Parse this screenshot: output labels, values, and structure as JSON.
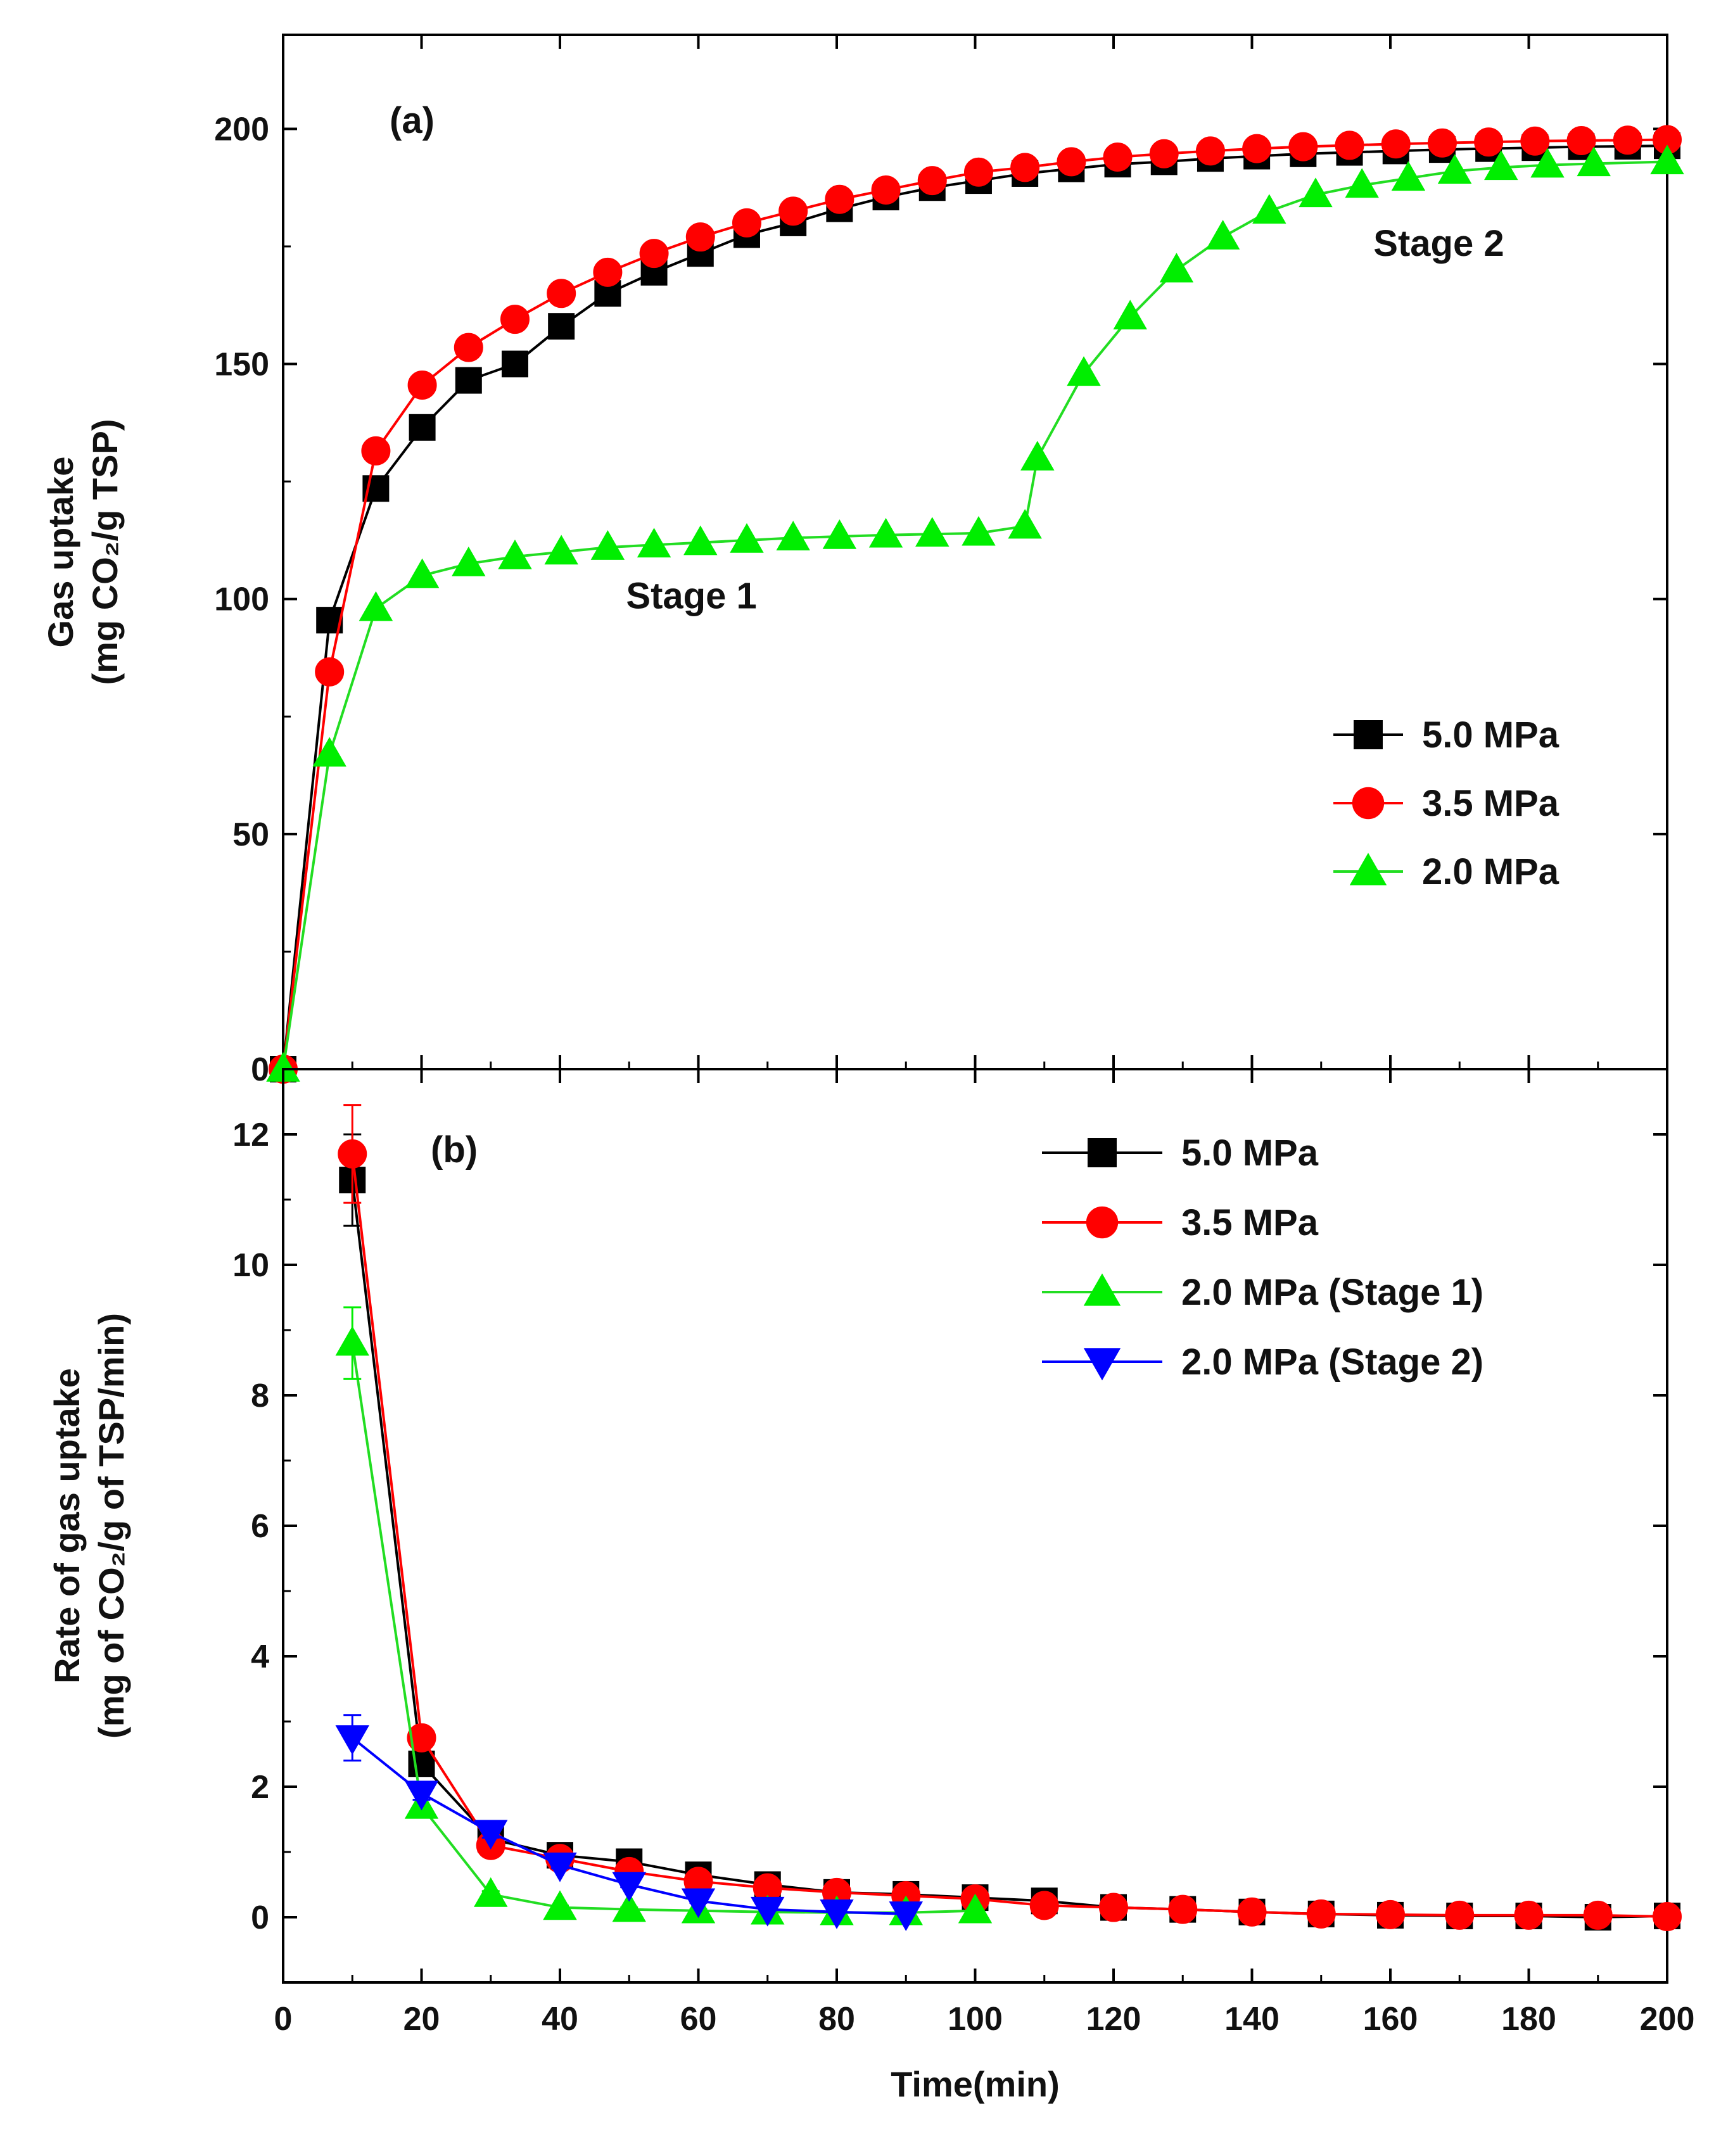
{
  "chart_data": [
    {
      "type": "line",
      "panel_label": "(a)",
      "xlabel": "",
      "ylabel_line1": "Gas uptake",
      "ylabel_line2": "(mg CO₂/g TSP)",
      "xlim": [
        0,
        200
      ],
      "ylim": [
        0,
        220
      ],
      "yticks": [
        0,
        50,
        100,
        150,
        200
      ],
      "annotations": [
        {
          "text": "Stage 1",
          "x": 59,
          "y": 98
        },
        {
          "text": "Stage 2",
          "x": 167,
          "y": 173
        }
      ],
      "legend_position": "right",
      "series": [
        {
          "name": "5.0 MPa",
          "color": "#000000",
          "marker": "square",
          "x": [
            0,
            6.7,
            13.4,
            20.1,
            26.8,
            33.5,
            40.2,
            46.9,
            53.6,
            60.3,
            67,
            73.7,
            80.4,
            87.1,
            93.8,
            100.5,
            107.2,
            113.9,
            120.6,
            127.3,
            134,
            140.7,
            147.4,
            154.1,
            160.8,
            167.5,
            174.2,
            180.9,
            187.6,
            194.3,
            200
          ],
          "y": [
            0,
            95.5,
            123.5,
            136.5,
            146.5,
            150,
            158,
            165,
            169.5,
            173.5,
            177.5,
            180,
            183,
            185.5,
            187.5,
            189,
            190.5,
            191.5,
            192.5,
            193,
            193.7,
            194.2,
            194.7,
            195,
            195.3,
            195.6,
            195.8,
            196,
            196.2,
            196.3,
            196.4
          ]
        },
        {
          "name": "3.5 MPa",
          "color": "#ff0000",
          "marker": "circle",
          "x": [
            0,
            6.7,
            13.4,
            20.1,
            26.8,
            33.5,
            40.2,
            46.9,
            53.6,
            60.3,
            67,
            73.7,
            80.4,
            87.1,
            93.8,
            100.5,
            107.2,
            113.9,
            120.6,
            127.3,
            134,
            140.7,
            147.4,
            154.1,
            160.8,
            167.5,
            174.2,
            180.9,
            187.6,
            194.3,
            200
          ],
          "y": [
            0,
            84.5,
            131.5,
            145.5,
            153.5,
            159.5,
            165,
            169.5,
            173.5,
            177,
            180,
            182.5,
            185,
            187,
            189,
            190.8,
            191.8,
            193,
            194,
            194.7,
            195.3,
            195.8,
            196.2,
            196.5,
            196.8,
            197,
            197.2,
            197.4,
            197.5,
            197.6,
            197.7
          ]
        },
        {
          "name": "2.0 MPa",
          "color": "#00ee00",
          "marker": "triangle-up",
          "x": [
            0,
            6.7,
            13.4,
            20.1,
            26.8,
            33.5,
            40.2,
            46.9,
            53.6,
            60.3,
            67,
            73.7,
            80.4,
            87.1,
            93.8,
            100.5,
            107.2,
            109,
            115.7,
            122.4,
            129.1,
            135.8,
            142.5,
            149.2,
            155.9,
            162.6,
            169.3,
            176,
            182.7,
            189.4,
            200
          ],
          "y": [
            0,
            67,
            98,
            105,
            107.5,
            109,
            110,
            111,
            111.5,
            112,
            112.5,
            113,
            113.3,
            113.6,
            113.8,
            114,
            115.5,
            130,
            148,
            160,
            170,
            177,
            182.5,
            186,
            188,
            189.5,
            191,
            191.8,
            192.3,
            192.6,
            193
          ]
        }
      ]
    },
    {
      "type": "line",
      "panel_label": "(b)",
      "xlabel": "Time(min)",
      "ylabel_line1": "Rate of gas uptake",
      "ylabel_line2": "(mg of CO₂/g of TSP/min)",
      "xlim": [
        0,
        200
      ],
      "ylim": [
        -1,
        13
      ],
      "xticks": [
        0,
        20,
        40,
        60,
        80,
        100,
        120,
        140,
        160,
        180,
        200
      ],
      "yticks": [
        0,
        2,
        4,
        6,
        8,
        10,
        12
      ],
      "legend_position": "top-right",
      "series": [
        {
          "name": "5.0 MPa",
          "color": "#000000",
          "marker": "square",
          "x": [
            10,
            20,
            30,
            40,
            50,
            60,
            70,
            80,
            90,
            100,
            110,
            120,
            130,
            140,
            150,
            160,
            170,
            180,
            190,
            200
          ],
          "y": [
            11.3,
            2.35,
            1.2,
            0.95,
            0.85,
            0.65,
            0.5,
            0.38,
            0.35,
            0.3,
            0.25,
            0.15,
            0.12,
            0.08,
            0.05,
            0.03,
            0.02,
            0.02,
            0.0,
            0.02
          ],
          "err": [
            0.7,
            0.1,
            0.08,
            0.06,
            0.05,
            0.04,
            0.03,
            0.02,
            0.02,
            0.02,
            0.02,
            0.01,
            0.01,
            0.01,
            0.01,
            0.01,
            0.01,
            0.01,
            0.01,
            0.01
          ]
        },
        {
          "name": "3.5 MPa",
          "color": "#ff0000",
          "marker": "circle",
          "x": [
            10,
            20,
            30,
            40,
            50,
            60,
            70,
            80,
            90,
            100,
            110,
            120,
            130,
            140,
            150,
            160,
            170,
            180,
            190,
            200
          ],
          "y": [
            11.7,
            2.75,
            1.1,
            0.9,
            0.7,
            0.55,
            0.45,
            0.38,
            0.33,
            0.28,
            0.18,
            0.15,
            0.12,
            0.08,
            0.05,
            0.04,
            0.03,
            0.03,
            0.03,
            0.01
          ],
          "err": [
            0.75,
            0.12,
            0.08,
            0.06,
            0.05,
            0.04,
            0.03,
            0.02,
            0.02,
            0.02,
            0.02,
            0.01,
            0.01,
            0.01,
            0.01,
            0.01,
            0.01,
            0.01,
            0.01,
            0.01
          ]
        },
        {
          "name": "2.0 MPa (Stage 1)",
          "color": "#00ee00",
          "marker": "triangle-up",
          "x": [
            10,
            20,
            30,
            40,
            50,
            60,
            70,
            80,
            90,
            100
          ],
          "y": [
            8.8,
            1.7,
            0.35,
            0.15,
            0.12,
            0.1,
            0.08,
            0.07,
            0.07,
            0.1
          ],
          "err": [
            0.55,
            0.1,
            0.05,
            0.03,
            0.03,
            0.02,
            0.02,
            0.02,
            0.02,
            0.02
          ]
        },
        {
          "name": "2.0 MPa (Stage 2)",
          "color": "#0000ff",
          "marker": "triangle-down",
          "x": [
            10,
            20,
            30,
            40,
            50,
            60,
            70,
            80,
            90
          ],
          "y": [
            2.75,
            1.9,
            1.3,
            0.8,
            0.5,
            0.25,
            0.12,
            0.08,
            0.05
          ],
          "err": [
            0.35,
            0.1,
            0.08,
            0.05,
            0.04,
            0.03,
            0.02,
            0.02,
            0.02
          ]
        }
      ]
    }
  ]
}
